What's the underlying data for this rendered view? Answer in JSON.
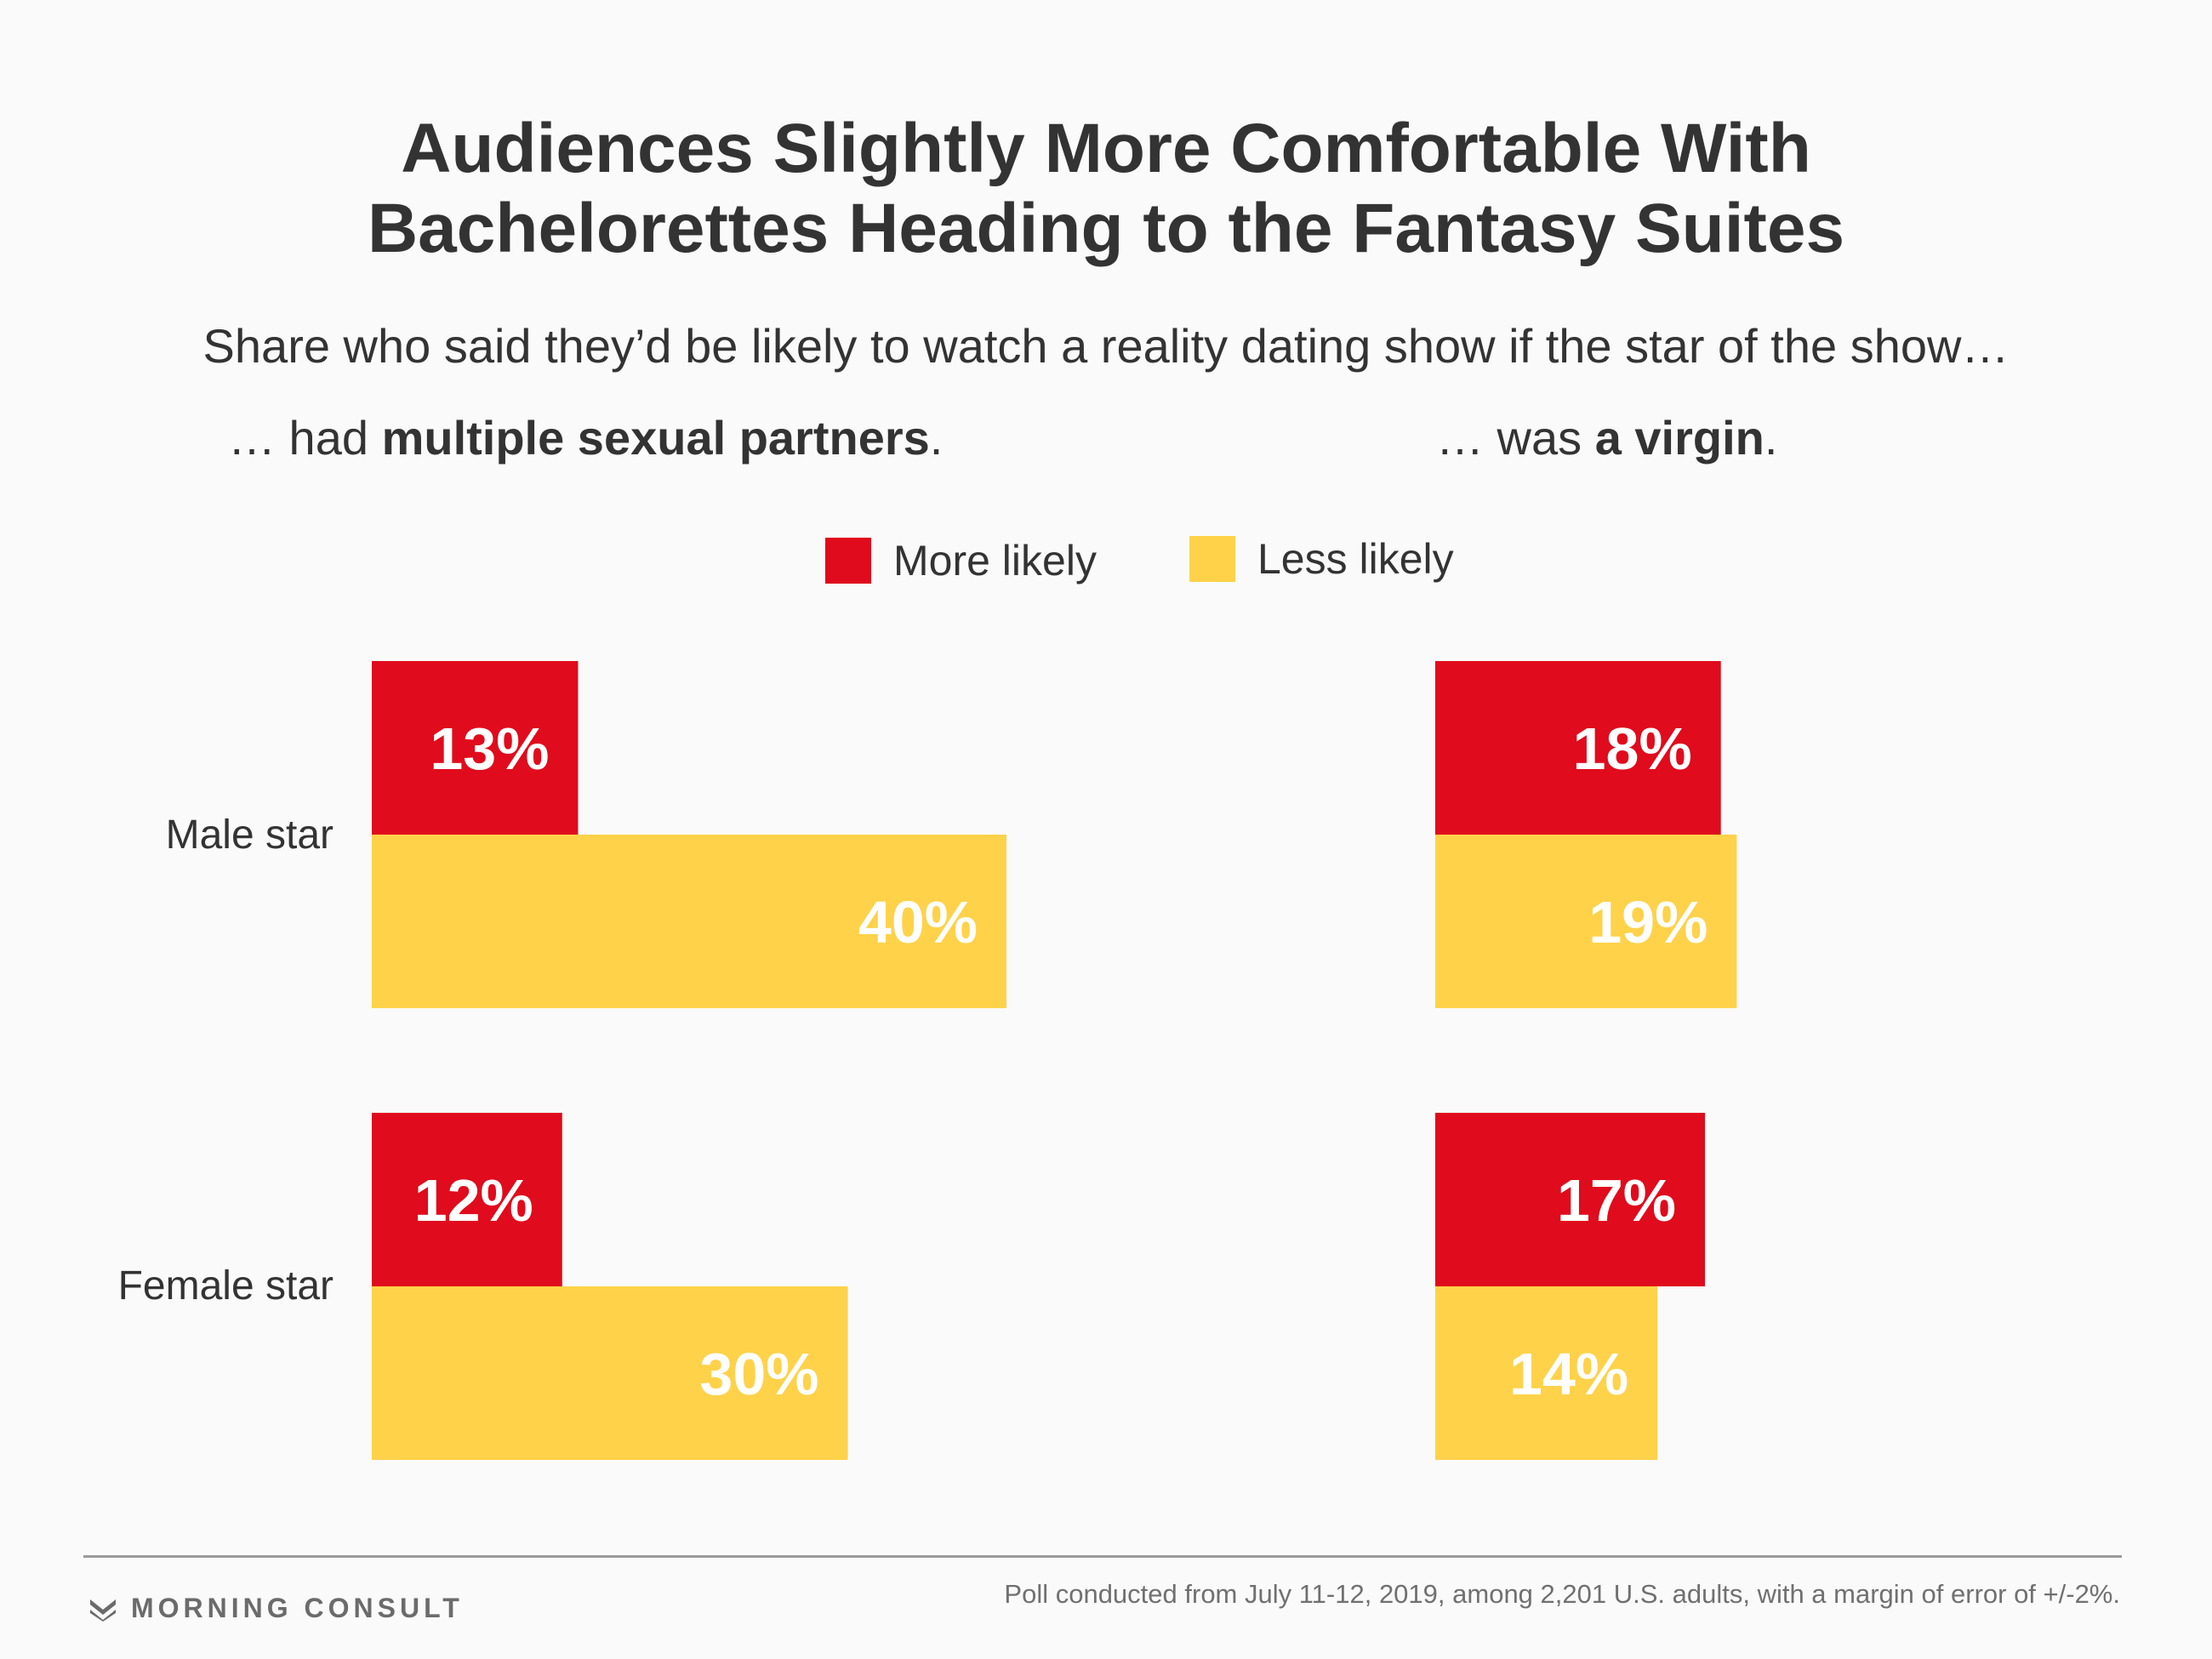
{
  "chart_data": {
    "type": "bar",
    "orientation": "horizontal",
    "title_lines": [
      "Audiences Slightly More Comfortable With",
      "Bachelorettes Heading to the Fantasy Suites"
    ],
    "subtitle": "Share who said they’d be likely to watch a reality dating show if the star of the show…",
    "legend": [
      {
        "label": "More likely",
        "color": "#e00b1c"
      },
      {
        "label": "Less likely",
        "color": "#ffd24a"
      }
    ],
    "categories": [
      "Male star",
      "Female star"
    ],
    "panels": [
      {
        "head_prefix": "… had ",
        "head_bold": "multiple sexual partners",
        "head_suffix": ".",
        "series": [
          {
            "name": "More likely",
            "values": [
              13,
              12
            ],
            "labels": [
              "13%",
              "12%"
            ]
          },
          {
            "name": "Less likely",
            "values": [
              40,
              30
            ],
            "labels": [
              "40%",
              "30%"
            ]
          }
        ]
      },
      {
        "head_prefix": "… was ",
        "head_bold": "a virgin",
        "head_suffix": ".",
        "series": [
          {
            "name": "More likely",
            "values": [
              18,
              17
            ],
            "labels": [
              "18%",
              "17%"
            ]
          },
          {
            "name": "Less likely",
            "values": [
              19,
              14
            ],
            "labels": [
              "19%",
              "14%"
            ]
          }
        ]
      }
    ],
    "unit": "%"
  },
  "footer": {
    "brand": "MORNING CONSULT",
    "note": "Poll conducted from July 11-12, 2019, among 2,201 U.S. adults, with a margin of error of +/-2%."
  }
}
